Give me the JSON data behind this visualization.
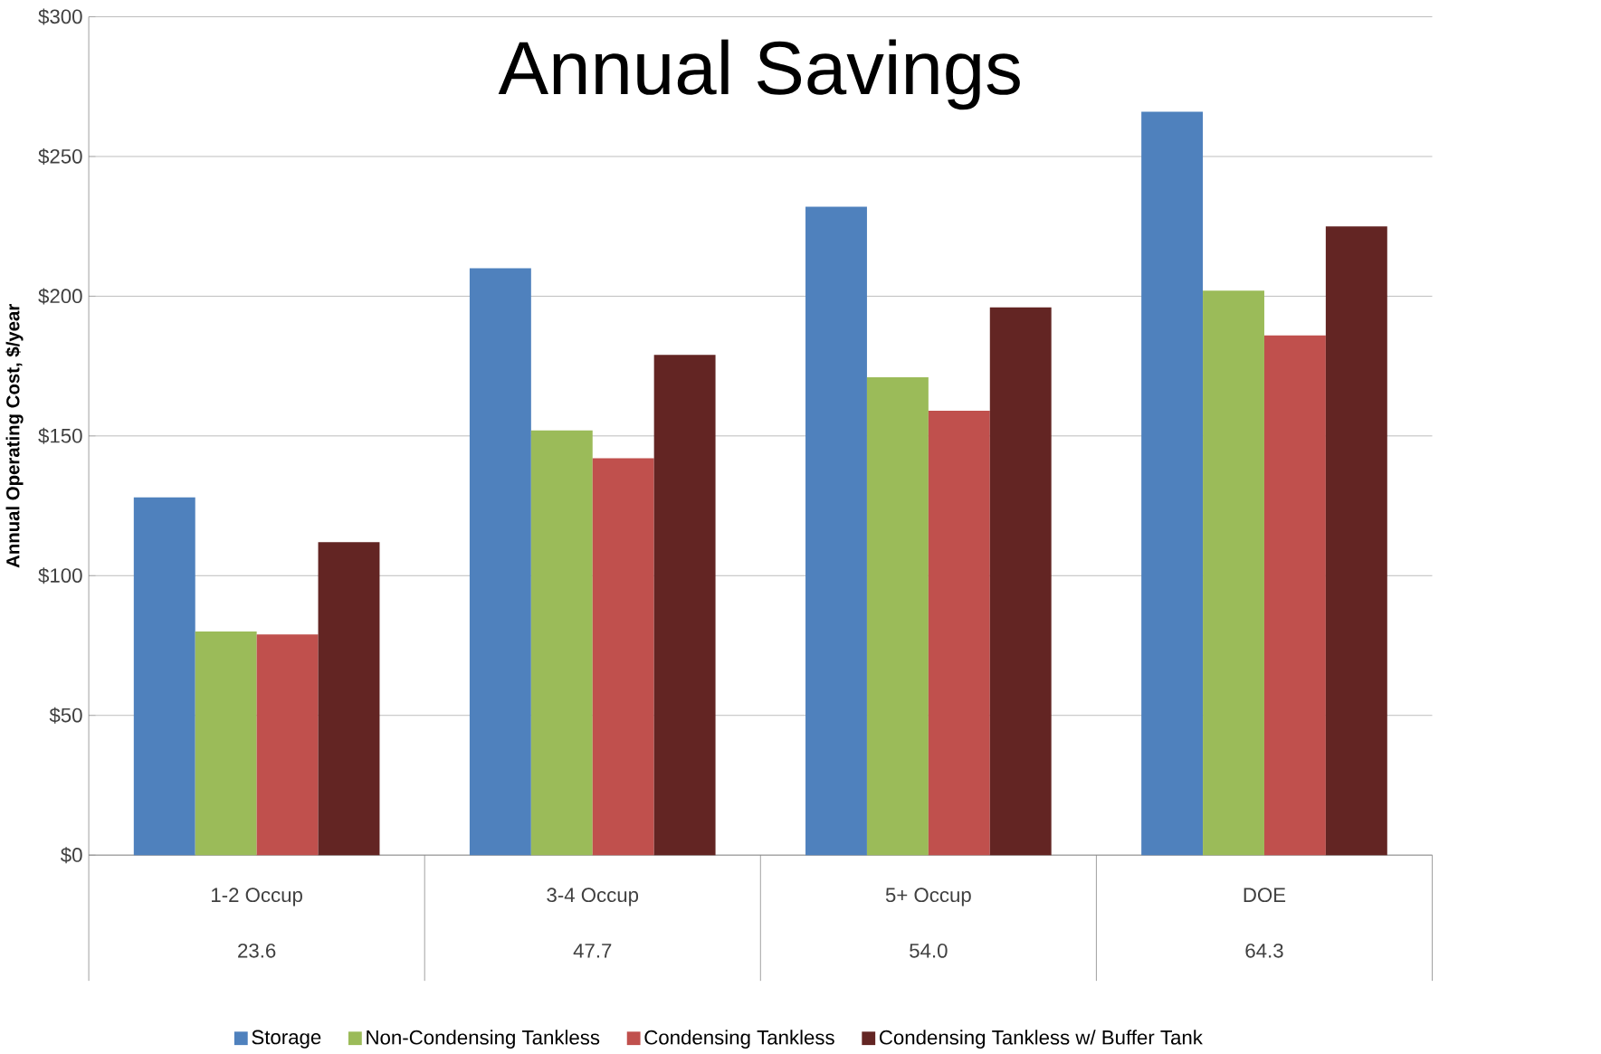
{
  "chart_data": {
    "type": "bar",
    "title": "Annual Savings",
    "ylabel": "Annual Operating Cost, $/year",
    "categories": [
      "1-2 Occup",
      "3-4 Occup",
      "5+ Occup",
      "DOE"
    ],
    "series": [
      {
        "name": "Storage",
        "color": "#4f81bd",
        "values": [
          128,
          210,
          232,
          266
        ]
      },
      {
        "name": "Non-Condensing Tankless",
        "color": "#9bbb59",
        "values": [
          80,
          152,
          171,
          202
        ]
      },
      {
        "name": "Condensing Tankless",
        "color": "#c0504d",
        "values": [
          79,
          142,
          159,
          186
        ]
      },
      {
        "name": "Condensing Tankless w/ Buffer Tank",
        "color": "#632523",
        "values": [
          112,
          179,
          196,
          225
        ]
      }
    ],
    "ylim": [
      0,
      300
    ],
    "yticks": [
      {
        "value": 0,
        "label": "$0"
      },
      {
        "value": 50,
        "label": "$50"
      },
      {
        "value": 100,
        "label": "$100"
      },
      {
        "value": 150,
        "label": "$150"
      },
      {
        "value": 200,
        "label": "$200"
      },
      {
        "value": 250,
        "label": "$250"
      },
      {
        "value": 300,
        "label": "$300"
      }
    ],
    "annotations": [
      "23.6",
      "47.7",
      "54.0",
      "64.3"
    ],
    "grid": "y",
    "legend": "bottom"
  }
}
